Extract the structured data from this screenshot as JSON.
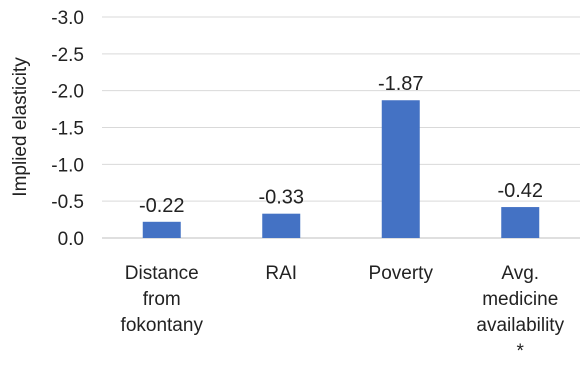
{
  "chart_data": {
    "type": "bar",
    "title": "",
    "xlabel": "",
    "ylabel": "Implied elasticity",
    "y_reversed": true,
    "ylim": [
      0,
      -3.0
    ],
    "y_ticks": [
      0.0,
      -0.5,
      -1.0,
      -1.5,
      -2.0,
      -2.5,
      -3.0
    ],
    "y_tick_labels": [
      "0.0",
      "-0.5",
      "-1.0",
      "-1.5",
      "-2.0",
      "-2.5",
      "-3.0"
    ],
    "grid": true,
    "legend": "none",
    "bar_color": "#4472c4",
    "categories": [
      [
        "Distance",
        "from",
        "fokontany"
      ],
      [
        "RAI"
      ],
      [
        "Poverty"
      ],
      [
        "Avg.",
        "medicine",
        "availability",
        "*"
      ]
    ],
    "values": [
      -0.22,
      -0.33,
      -1.87,
      -0.42
    ],
    "data_labels": [
      "-0.22",
      "-0.33",
      "-1.87",
      "-0.42"
    ]
  }
}
